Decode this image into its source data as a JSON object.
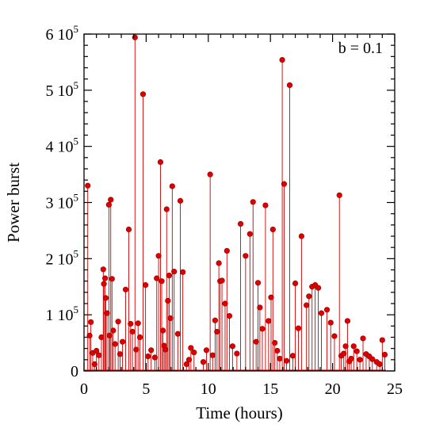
{
  "chart_data": {
    "type": "scatter",
    "style": "stem",
    "title": "",
    "xlabel": "Time (hours)",
    "ylabel": "Power burst",
    "annotation": "b = 0.1",
    "annotation_position": "top-right",
    "xlim": [
      0,
      25
    ],
    "ylim": [
      0,
      600000
    ],
    "x_ticks": [
      {
        "value": 0,
        "label": "0"
      },
      {
        "value": 5,
        "label": "5"
      },
      {
        "value": 10,
        "label": "10"
      },
      {
        "value": 15,
        "label": "15"
      },
      {
        "value": 20,
        "label": "20"
      },
      {
        "value": 25,
        "label": "25"
      }
    ],
    "y_ticks": [
      {
        "value": 0,
        "label": "0",
        "exp": ""
      },
      {
        "value": 100000,
        "label": "1 10",
        "exp": "5"
      },
      {
        "value": 200000,
        "label": "2 10",
        "exp": "5"
      },
      {
        "value": 300000,
        "label": "3 10",
        "exp": "5"
      },
      {
        "value": 400000,
        "label": "4 10",
        "exp": "5"
      },
      {
        "value": 500000,
        "label": "5 10",
        "exp": "5"
      },
      {
        "value": 600000,
        "label": "6 10",
        "exp": "5"
      }
    ],
    "grid": false,
    "legend": "none",
    "color": "#dd0000",
    "series": [
      {
        "x": [
          0.3,
          0.45,
          0.55,
          0.7,
          0.85,
          1.0,
          1.2,
          1.4,
          1.55,
          1.6,
          1.7,
          1.75,
          1.85,
          2.0,
          2.05,
          2.15,
          2.25,
          2.35,
          2.5,
          2.75,
          2.9,
          3.1,
          3.35,
          3.6,
          3.75,
          3.9,
          4.1,
          4.2,
          4.35,
          4.5,
          4.75,
          4.95,
          5.15,
          5.4,
          5.7,
          5.85,
          6.0,
          6.15,
          6.25,
          6.35,
          6.45,
          6.55,
          6.65,
          6.75,
          6.85,
          6.95,
          7.1,
          7.25,
          7.55,
          7.75,
          7.95,
          8.25,
          8.45,
          8.6,
          8.85,
          9.6,
          9.85,
          10.15,
          10.35,
          10.55,
          10.7,
          10.85,
          10.95,
          11.1,
          11.35,
          11.5,
          11.7,
          11.95,
          12.3,
          12.6,
          13.0,
          13.35,
          13.6,
          13.85,
          14.0,
          14.15,
          14.35,
          14.6,
          14.85,
          15.05,
          15.2,
          15.35,
          15.55,
          15.75,
          15.95,
          16.1,
          16.3,
          16.55,
          16.8,
          17.0,
          17.25,
          17.5,
          17.9,
          18.1,
          18.35,
          18.6,
          18.85,
          19.1,
          19.55,
          19.85,
          20.15,
          20.55,
          20.7,
          20.9,
          21.05,
          21.2,
          21.35,
          21.5,
          21.7,
          21.95,
          22.2,
          22.45,
          22.7,
          22.95,
          23.2,
          23.55,
          23.8,
          24.0,
          24.2
        ],
        "y": [
          330000,
          63000,
          87000,
          32000,
          12000,
          36000,
          28000,
          60000,
          181000,
          155000,
          165000,
          130000,
          103000,
          296000,
          63000,
          305000,
          164000,
          72000,
          48000,
          88000,
          30000,
          52000,
          145000,
          252000,
          84000,
          70000,
          594000,
          38000,
          85000,
          60000,
          493000,
          153000,
          26000,
          37000,
          24000,
          165000,
          205000,
          372000,
          160000,
          72000,
          45000,
          38000,
          288000,
          125000,
          170000,
          94000,
          329000,
          177000,
          66000,
          303000,
          176000,
          12000,
          20000,
          41000,
          33000,
          16000,
          37000,
          350000,
          28000,
          90000,
          70000,
          192000,
          160000,
          161000,
          120000,
          214000,
          98000,
          44000,
          31000,
          262000,
          205000,
          244000,
          301000,
          52000,
          157000,
          113000,
          75000,
          295000,
          89000,
          131000,
          252000,
          50000,
          36000,
          22000,
          554000,
          333000,
          18000,
          509000,
          27000,
          156000,
          76000,
          240000,
          117000,
          133000,
          150000,
          153000,
          148000,
          103000,
          109000,
          86000,
          62000,
          313000,
          27000,
          31000,
          44000,
          89000,
          17000,
          22000,
          44000,
          35000,
          20000,
          58000,
          30000,
          26000,
          21000,
          16000,
          12000,
          55000,
          29000
        ]
      }
    ]
  }
}
